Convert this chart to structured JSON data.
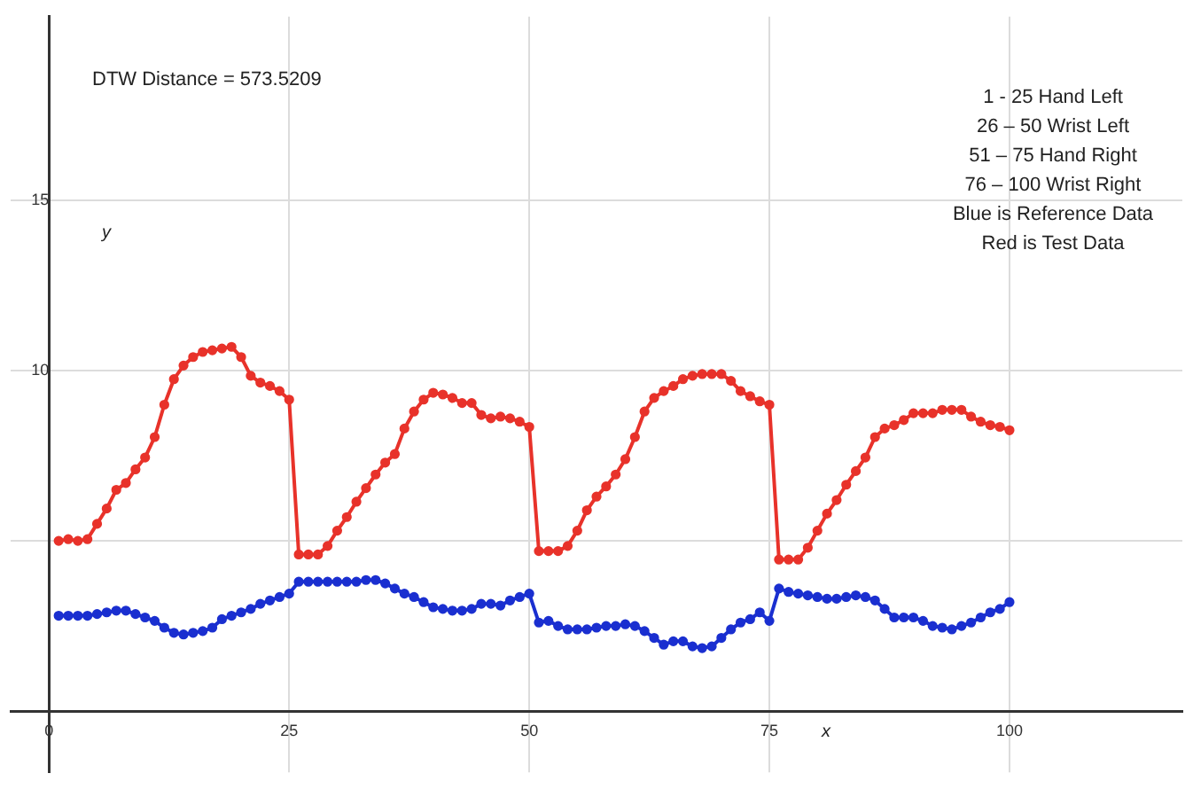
{
  "chart_data": {
    "type": "line",
    "xlabel": "x",
    "ylabel": "y",
    "annotations": [
      "DTW Distance = 573.5209",
      "1 - 25 Hand Left",
      "26 – 50 Wrist Left",
      "51 – 75 Hand Right",
      "76 – 100 Wrist Right",
      "Blue is Reference Data",
      "Red is Test Data"
    ],
    "x": [
      1,
      2,
      3,
      4,
      5,
      6,
      7,
      8,
      9,
      10,
      11,
      12,
      13,
      14,
      15,
      16,
      17,
      18,
      19,
      20,
      21,
      22,
      23,
      24,
      25,
      26,
      27,
      28,
      29,
      30,
      31,
      32,
      33,
      34,
      35,
      36,
      37,
      38,
      39,
      40,
      41,
      42,
      43,
      44,
      45,
      46,
      47,
      48,
      49,
      50,
      51,
      52,
      53,
      54,
      55,
      56,
      57,
      58,
      59,
      60,
      61,
      62,
      63,
      64,
      65,
      66,
      67,
      68,
      69,
      70,
      71,
      72,
      73,
      74,
      75,
      76,
      77,
      78,
      79,
      80,
      81,
      82,
      83,
      84,
      85,
      86,
      87,
      88,
      89,
      90,
      91,
      92,
      93,
      94,
      95,
      96,
      97,
      98,
      99,
      100
    ],
    "series": [
      {
        "color": "#e8322a",
        "values": [
          5.0,
          5.05,
          5.0,
          5.05,
          5.5,
          5.95,
          6.5,
          6.7,
          7.1,
          7.45,
          8.05,
          9.0,
          9.75,
          10.15,
          10.4,
          10.55,
          10.6,
          10.65,
          10.7,
          10.4,
          9.85,
          9.65,
          9.55,
          9.4,
          9.15,
          4.6,
          4.6,
          4.6,
          4.85,
          5.3,
          5.7,
          6.15,
          6.55,
          6.95,
          7.3,
          7.55,
          8.3,
          8.8,
          9.15,
          9.35,
          9.3,
          9.2,
          9.05,
          9.05,
          8.7,
          8.6,
          8.65,
          8.6,
          8.5,
          8.35,
          4.7,
          4.7,
          4.7,
          4.85,
          5.3,
          5.9,
          6.3,
          6.6,
          6.95,
          7.4,
          8.05,
          8.8,
          9.2,
          9.4,
          9.55,
          9.75,
          9.85,
          9.9,
          9.9,
          9.9,
          9.7,
          9.4,
          9.25,
          9.1,
          9.0,
          4.45,
          4.45,
          4.45,
          4.8,
          5.3,
          5.8,
          6.2,
          6.65,
          7.05,
          7.45,
          8.05,
          8.3,
          8.4,
          8.55,
          8.75,
          8.75,
          8.75,
          8.85,
          8.85,
          8.85,
          8.65,
          8.5,
          8.4,
          8.35,
          8.25
        ]
      },
      {
        "color": "#1a2fd0",
        "values": [
          2.8,
          2.8,
          2.8,
          2.8,
          2.85,
          2.9,
          2.95,
          2.95,
          2.85,
          2.75,
          2.65,
          2.45,
          2.3,
          2.25,
          2.3,
          2.35,
          2.45,
          2.7,
          2.8,
          2.9,
          3.0,
          3.15,
          3.25,
          3.35,
          3.45,
          3.8,
          3.8,
          3.8,
          3.8,
          3.8,
          3.8,
          3.8,
          3.85,
          3.85,
          3.75,
          3.6,
          3.45,
          3.35,
          3.2,
          3.05,
          3.0,
          2.95,
          2.95,
          3.0,
          3.15,
          3.15,
          3.1,
          3.25,
          3.35,
          3.45,
          2.6,
          2.65,
          2.5,
          2.4,
          2.4,
          2.4,
          2.45,
          2.5,
          2.5,
          2.55,
          2.5,
          2.35,
          2.15,
          1.95,
          2.05,
          2.05,
          1.9,
          1.85,
          1.9,
          2.15,
          2.4,
          2.6,
          2.7,
          2.9,
          2.65,
          3.6,
          3.5,
          3.45,
          3.4,
          3.35,
          3.3,
          3.3,
          3.35,
          3.4,
          3.35,
          3.25,
          3.0,
          2.75,
          2.75,
          2.75,
          2.65,
          2.5,
          2.45,
          2.4,
          2.5,
          2.6,
          2.75,
          2.9,
          3.0,
          3.2
        ]
      }
    ],
    "xlim": [
      -4,
      118
    ],
    "ylim": [
      -1.8,
      20.4
    ],
    "xticks": [
      0,
      25,
      50,
      75,
      100
    ],
    "yticks": [
      {
        "value": 5,
        "label": null
      },
      10,
      15
    ],
    "grid": true,
    "legend": false,
    "marker": "circle",
    "line_style": "solid"
  }
}
